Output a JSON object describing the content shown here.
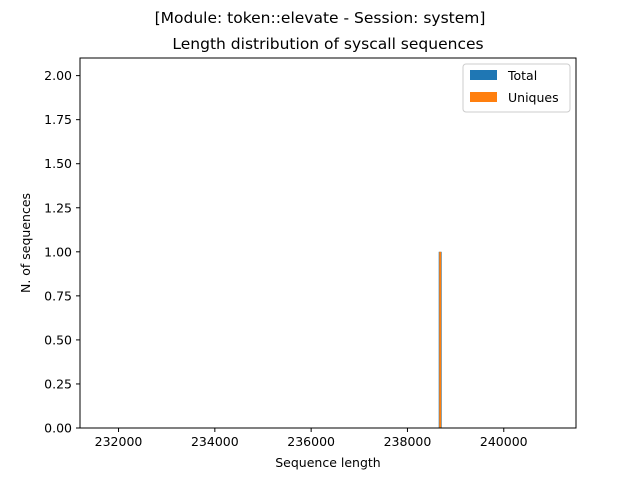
{
  "chart_data": {
    "type": "bar",
    "suptitle": "[Module: token::elevate - Session: system]",
    "title": "Length distribution of syscall sequences",
    "xlabel": "Sequence length",
    "ylabel": "N. of sequences",
    "xlim": [
      231200,
      241500
    ],
    "ylim": [
      0,
      2.1
    ],
    "xticks": [
      232000,
      234000,
      236000,
      238000,
      240000
    ],
    "yticks": [
      0.0,
      0.25,
      0.5,
      0.75,
      1.0,
      1.25,
      1.5,
      1.75,
      2.0
    ],
    "xtick_labels": [
      "232000",
      "234000",
      "236000",
      "238000",
      "240000"
    ],
    "ytick_labels": [
      "0.00",
      "0.25",
      "0.50",
      "0.75",
      "1.00",
      "1.25",
      "1.50",
      "1.75",
      "2.00"
    ],
    "legend_position": "top-right",
    "grid": false,
    "series": [
      {
        "name": "Total",
        "color": "#1f77b4",
        "bars": [
          {
            "x": 238680,
            "value": 1
          }
        ]
      },
      {
        "name": "Uniques",
        "color": "#ff7f0e",
        "bars": [
          {
            "x": 238680,
            "value": 1
          }
        ]
      }
    ]
  }
}
